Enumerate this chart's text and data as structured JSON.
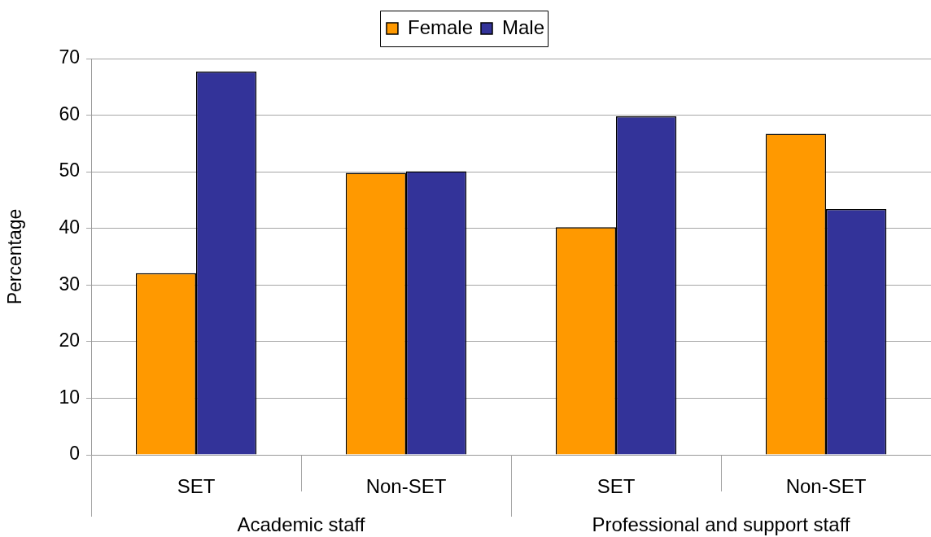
{
  "chart_data": {
    "type": "bar",
    "categories": [
      "SET",
      "Non-SET",
      "SET",
      "Non-SET"
    ],
    "series": [
      {
        "name": "Female",
        "color": "#ff9900",
        "values": [
          32.1,
          49.8,
          40.2,
          56.7
        ]
      },
      {
        "name": "Male",
        "color": "#333399",
        "values": [
          67.7,
          50.1,
          59.8,
          43.4
        ]
      }
    ],
    "ylabel": "Percentage",
    "ylim": [
      0,
      70
    ],
    "yticks": [
      0,
      10,
      20,
      30,
      40,
      50,
      60,
      70
    ],
    "grid": "y",
    "legend": "top",
    "annotations": [
      "Academic staff",
      "Professional and support staff"
    ]
  }
}
